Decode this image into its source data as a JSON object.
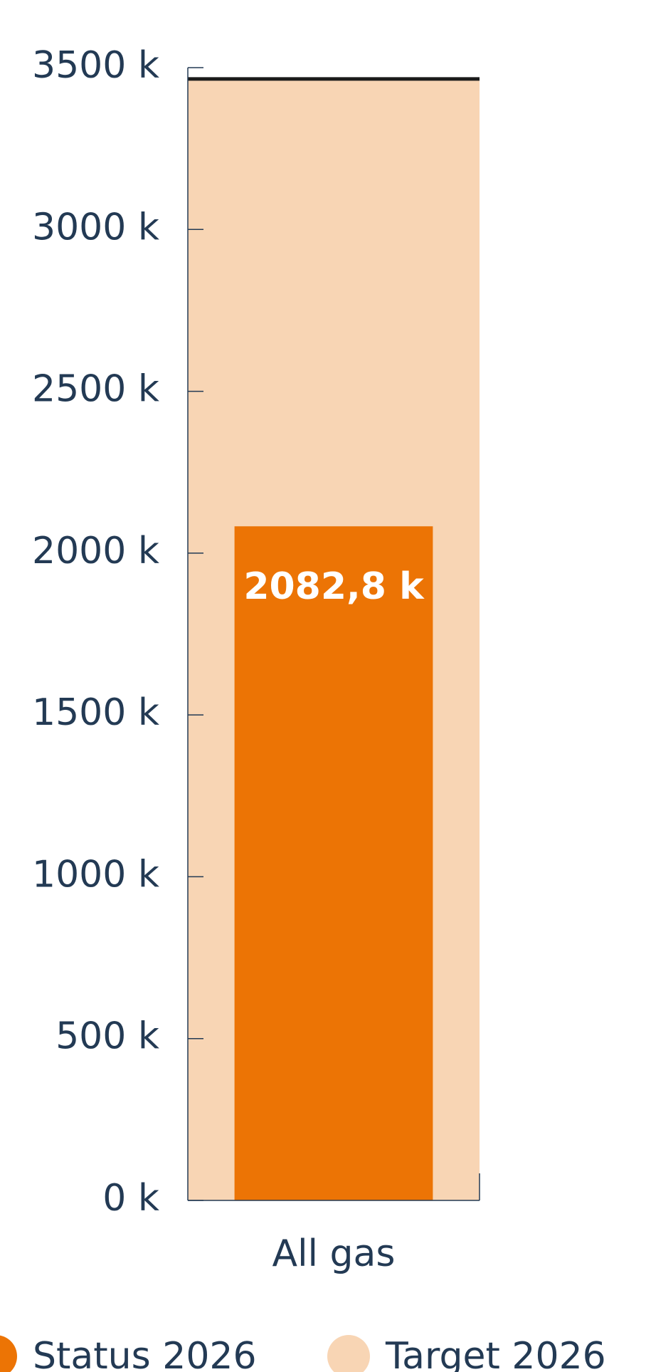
{
  "chart_data": {
    "type": "bar",
    "categories": [
      "All gas"
    ],
    "series": [
      {
        "name": "Target 2026",
        "color": "#f8d5b4",
        "values": [
          3465
        ]
      },
      {
        "name": "Status 2026",
        "color": "#ec7405",
        "values": [
          2082.8
        ],
        "value_labels": [
          "2082,8 k"
        ]
      }
    ],
    "ylim": [
      0,
      3500
    ],
    "yticks": [
      {
        "value": 0,
        "label": "0 k"
      },
      {
        "value": 500,
        "label": "500 k"
      },
      {
        "value": 1000,
        "label": "1000 k"
      },
      {
        "value": 1500,
        "label": "1500 k"
      },
      {
        "value": 2000,
        "label": "2000 k"
      },
      {
        "value": 2500,
        "label": "2500 k"
      },
      {
        "value": 3000,
        "label": "3000 k"
      },
      {
        "value": 3500,
        "label": "3500 k"
      }
    ],
    "legend": "bottom"
  }
}
